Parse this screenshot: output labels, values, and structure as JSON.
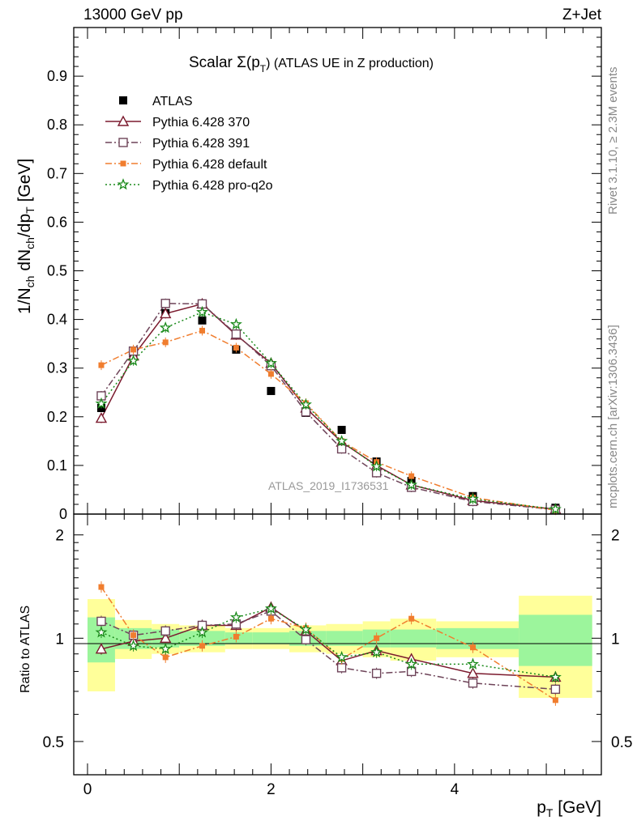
{
  "header": {
    "left": "13000 GeV pp",
    "right": "Z+Jet"
  },
  "side": {
    "rivet": "Rivet 3.1.10, ≥ 2.3M events",
    "source": "mcplots.cern.ch [arXiv:1306.3436]"
  },
  "chart_data": {
    "type": "scatter",
    "title_main": "Scalar Σ(p",
    "title_sub": "T",
    "title_rest": ") (ATLAS UE in Z production)",
    "watermark": "ATLAS_2019_I1736531",
    "xlabel_main": "p",
    "xlabel_sub": "T",
    "xlabel_rest": " [GeV]",
    "ylabel": "1/N_ch dN_ch/dp_T [GeV]",
    "ratio_ylabel": "Ratio to ATLAS",
    "xlim": [
      -0.15,
      5.6
    ],
    "ylim": [
      0,
      1.0
    ],
    "ratio_ylim": [
      0.4,
      2.3
    ],
    "x_ticks": [
      0,
      2,
      4
    ],
    "y_ticks": [
      0.1,
      0.2,
      0.3,
      0.4,
      0.5,
      0.6,
      0.7,
      0.8,
      0.9
    ],
    "ratio_ticks": [
      0.5,
      1,
      2
    ],
    "legend_position": "top-left",
    "bins": [
      0.0,
      0.3,
      0.7,
      1.0,
      1.5,
      1.8,
      2.2,
      2.6,
      3.0,
      3.3,
      3.8,
      4.7,
      5.5
    ],
    "x": [
      0.15,
      0.5,
      0.85,
      1.25,
      1.62,
      2.0,
      2.38,
      2.77,
      3.15,
      3.53,
      4.2,
      5.1
    ],
    "band_inner": [
      0.15,
      0.07,
      0.06,
      0.05,
      0.04,
      0.04,
      0.05,
      0.05,
      0.06,
      0.06,
      0.07,
      0.17
    ],
    "band_outer": [
      0.3,
      0.13,
      0.1,
      0.09,
      0.07,
      0.07,
      0.09,
      0.1,
      0.12,
      0.14,
      0.12,
      0.33
    ],
    "series": [
      {
        "name": "ATLAS",
        "color": "#000000",
        "marker": "filled-square",
        "values": [
          0.218,
          0.332,
          0.413,
          0.398,
          0.338,
          0.253,
          0.208,
          0.173,
          0.108,
          0.068,
          0.037,
          0.013
        ]
      },
      {
        "name": "Pythia 6.428 370",
        "color": "#7b1a2e",
        "marker": "open-triangle",
        "line": "solid",
        "values": [
          0.197,
          0.325,
          0.412,
          0.432,
          0.368,
          0.31,
          0.218,
          0.148,
          0.1,
          0.06,
          0.028,
          0.01
        ],
        "ratio": [
          0.93,
          0.98,
          1.0,
          1.09,
          1.09,
          1.23,
          1.05,
          0.86,
          0.92,
          0.87,
          0.79,
          0.77
        ]
      },
      {
        "name": "Pythia 6.428 391",
        "color": "#6e4459",
        "marker": "open-square",
        "line": "dashdot",
        "values": [
          0.243,
          0.335,
          0.433,
          0.432,
          0.37,
          0.305,
          0.21,
          0.134,
          0.085,
          0.055,
          0.026,
          0.009
        ],
        "ratio": [
          1.12,
          1.02,
          1.05,
          1.09,
          1.1,
          1.2,
          0.99,
          0.82,
          0.79,
          0.8,
          0.74,
          0.71
        ]
      },
      {
        "name": "Pythia 6.428 default",
        "color": "#f07d2e",
        "marker": "filled-square",
        "line": "dashdot",
        "values": [
          0.306,
          0.338,
          0.353,
          0.377,
          0.342,
          0.288,
          0.228,
          0.15,
          0.107,
          0.078,
          0.034,
          0.008
        ],
        "ratio": [
          1.41,
          1.02,
          0.88,
          0.95,
          1.01,
          1.14,
          1.07,
          0.87,
          1.0,
          1.14,
          0.94,
          0.66
        ]
      },
      {
        "name": "Pythia 6.428 pro-q2o",
        "color": "#1a8a1a",
        "marker": "star",
        "line": "dotted",
        "values": [
          0.227,
          0.315,
          0.383,
          0.415,
          0.39,
          0.31,
          0.225,
          0.15,
          0.098,
          0.06,
          0.031,
          0.01
        ],
        "ratio": [
          1.04,
          0.95,
          0.93,
          1.04,
          1.15,
          1.22,
          1.06,
          0.88,
          0.91,
          0.84,
          0.84,
          0.77
        ]
      }
    ]
  }
}
